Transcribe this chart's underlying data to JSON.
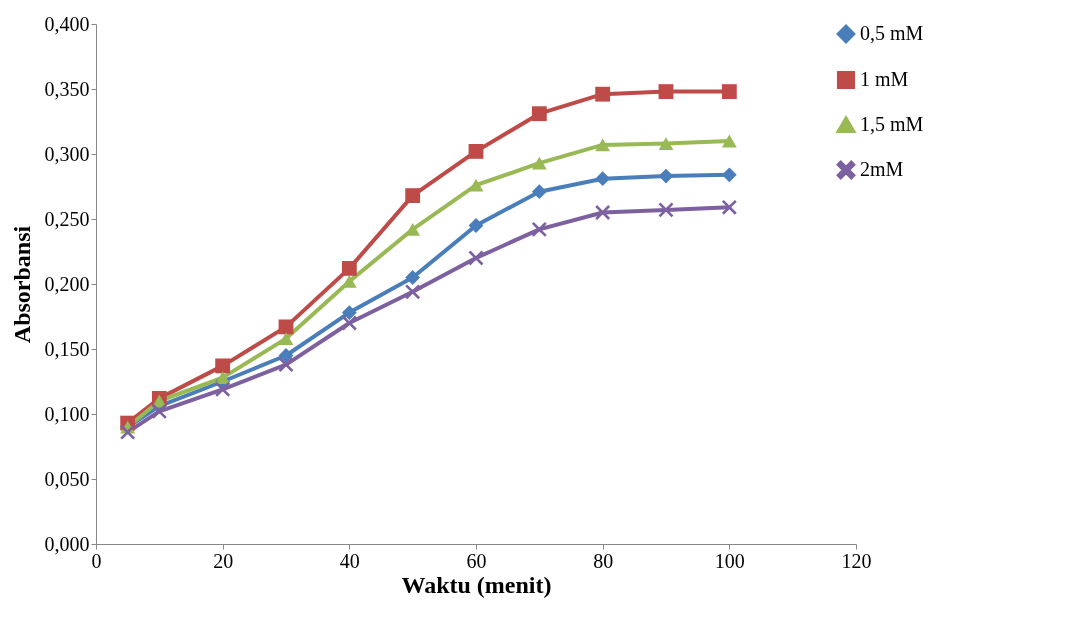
{
  "chart_data": {
    "type": "line",
    "xlabel": "Waktu (menit)",
    "ylabel": "Absorbansi",
    "xlim": [
      0,
      120
    ],
    "xticks": [
      0,
      20,
      40,
      60,
      80,
      100,
      120
    ],
    "ylim": [
      0,
      0.4
    ],
    "yticks": [
      {
        "value": 0,
        "label": "0,000"
      },
      {
        "value": 0.05,
        "label": "0,050"
      },
      {
        "value": 0.1,
        "label": "0,100"
      },
      {
        "value": 0.15,
        "label": "0,150"
      },
      {
        "value": 0.2,
        "label": "0,200"
      },
      {
        "value": 0.25,
        "label": "0,250"
      },
      {
        "value": 0.3,
        "label": "0,300"
      },
      {
        "value": 0.35,
        "label": "0,350"
      },
      {
        "value": 0.4,
        "label": "0,400"
      }
    ],
    "x": [
      5,
      10,
      20,
      30,
      40,
      50,
      60,
      70,
      80,
      90,
      100
    ],
    "grid": false,
    "legend": "right",
    "line_style": "solid",
    "series": [
      {
        "name": "0,5 mM",
        "color": "#4a7ebb",
        "marker": "diamond",
        "values": [
          0.09,
          0.106,
          0.125,
          0.145,
          0.178,
          0.205,
          0.245,
          0.271,
          0.281,
          0.283,
          0.284
        ]
      },
      {
        "name": "1 mM",
        "color": "#be4b48",
        "marker": "square",
        "values": [
          0.093,
          0.112,
          0.137,
          0.167,
          0.212,
          0.268,
          0.302,
          0.331,
          0.346,
          0.348,
          0.348
        ]
      },
      {
        "name": "1,5 mM",
        "color": "#98b954",
        "marker": "triangle",
        "values": [
          0.09,
          0.11,
          0.128,
          0.158,
          0.202,
          0.242,
          0.276,
          0.293,
          0.307,
          0.308,
          0.31
        ]
      },
      {
        "name": "2mM",
        "color": "#7d60a0",
        "marker": "cross",
        "values": [
          0.086,
          0.102,
          0.119,
          0.138,
          0.17,
          0.194,
          0.22,
          0.242,
          0.255,
          0.257,
          0.259
        ]
      }
    ]
  }
}
